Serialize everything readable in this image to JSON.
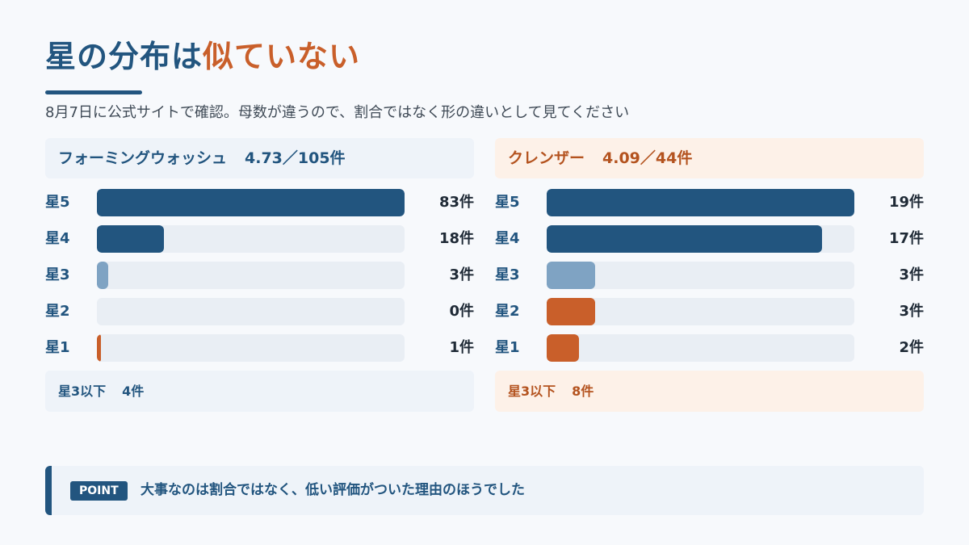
{
  "header": {
    "title_main": "星の分布は",
    "title_accent": "似ていない",
    "subtitle": "8月7日に公式サイトで確認。母数が違うので、割合ではなく形の違いとして見てください"
  },
  "chart_data": [
    {
      "type": "bar",
      "orientation": "horizontal",
      "product": "フォーミングウォッシュ",
      "rating": "4.73／105件",
      "categories": [
        "星5",
        "星4",
        "星3",
        "星2",
        "星1"
      ],
      "values": [
        83,
        18,
        3,
        0,
        1
      ],
      "count_labels": [
        "83件",
        "18件",
        "3件",
        "0件",
        "1件"
      ],
      "bar_colors": [
        "#22557f",
        "#22557f",
        "#7fa3c3",
        "#c95f2a",
        "#c95f2a"
      ],
      "summary_label": "星3以下",
      "summary_value": "4件"
    },
    {
      "type": "bar",
      "orientation": "horizontal",
      "product": "クレンザー",
      "rating": "4.09／44件",
      "categories": [
        "星5",
        "星4",
        "星3",
        "星2",
        "星1"
      ],
      "values": [
        19,
        17,
        3,
        3,
        2
      ],
      "count_labels": [
        "19件",
        "17件",
        "3件",
        "3件",
        "2件"
      ],
      "bar_colors": [
        "#22557f",
        "#22557f",
        "#7fa3c3",
        "#c95f2a",
        "#c95f2a"
      ],
      "summary_label": "星3以下",
      "summary_value": "8件"
    }
  ],
  "point": {
    "badge": "POINT",
    "text": "大事なのは割合ではなく、低い評価がついた理由のほうでした"
  }
}
